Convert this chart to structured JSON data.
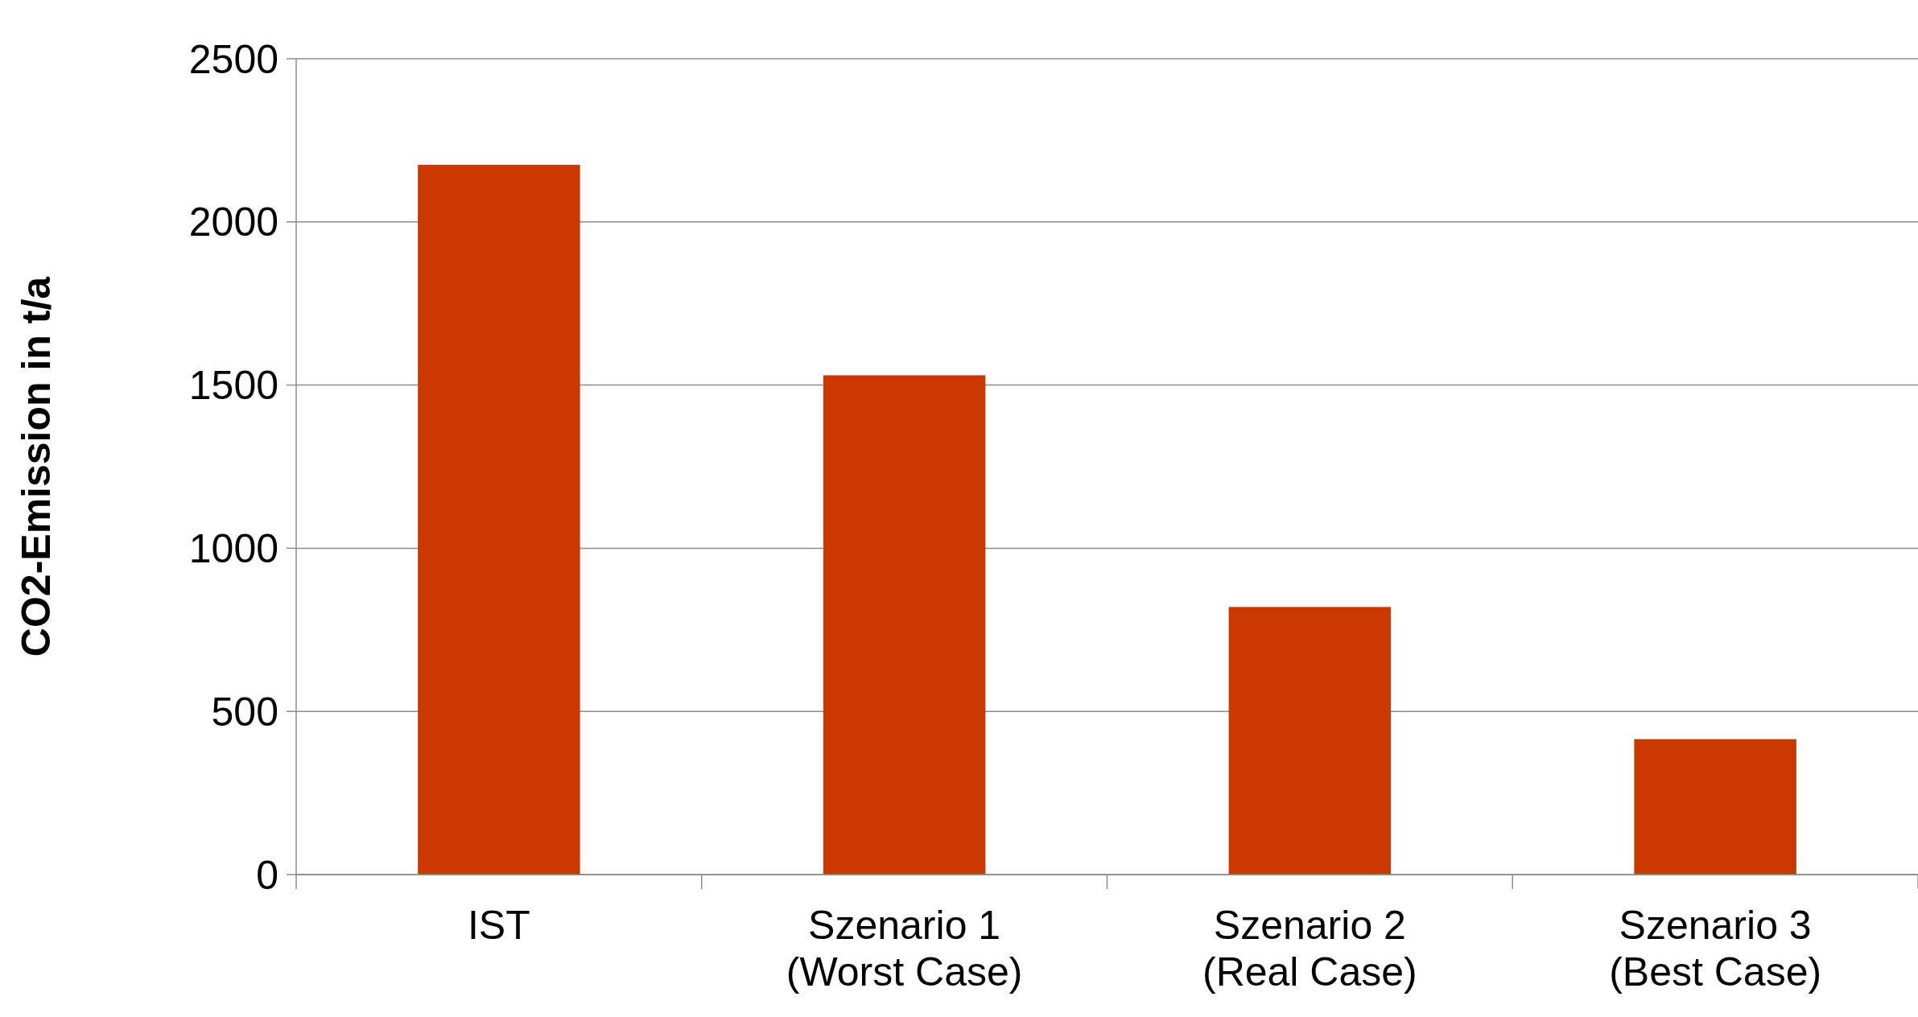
{
  "chart_data": {
    "type": "bar",
    "ylabel": "CO2-Emission in t/a",
    "categories": [
      "IST",
      "Szenario 1\n(Worst Case)",
      "Szenario 2\n(Real Case)",
      "Szenario 3\n(Best Case)"
    ],
    "values": [
      2175,
      1530,
      820,
      415
    ],
    "color": "#cc3700",
    "ylim": [
      0,
      2500
    ],
    "yticks": [
      0,
      500,
      1000,
      1500,
      2000,
      2500
    ],
    "grid": "y"
  }
}
